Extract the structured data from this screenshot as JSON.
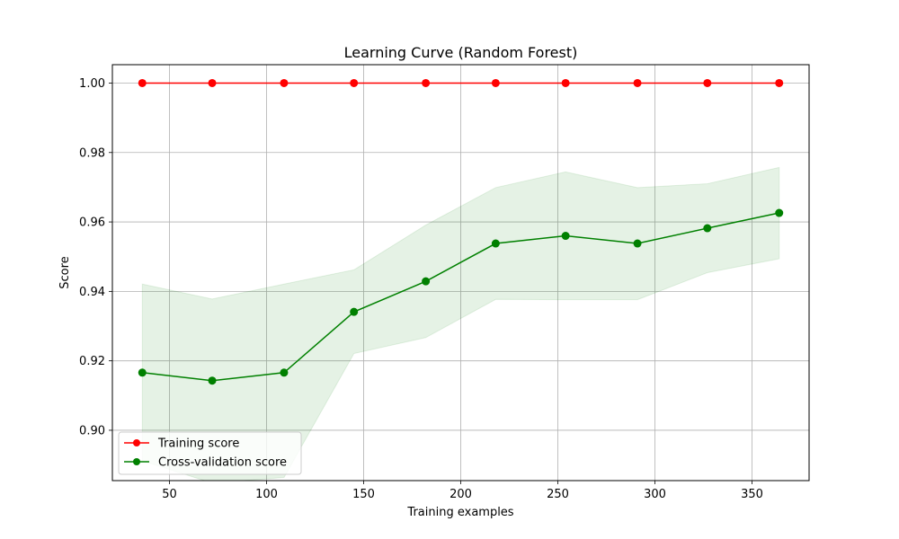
{
  "chart_data": {
    "type": "line",
    "title": "Learning Curve (Random Forest)",
    "xlabel": "Training examples",
    "ylabel": "Score",
    "xlim": [
      20.6,
      379.4
    ],
    "ylim": [
      0.8855,
      1.0053
    ],
    "xticks": [
      50,
      100,
      150,
      200,
      250,
      300,
      350
    ],
    "yticks": [
      0.9,
      0.92,
      0.94,
      0.96,
      0.98,
      1.0
    ],
    "grid": true,
    "legend_position": "lower-left",
    "x": [
      36,
      72,
      109,
      145,
      182,
      218,
      254,
      291,
      327,
      364
    ],
    "series": [
      {
        "name": "Training score",
        "color": "#ff0000",
        "values": [
          1.0,
          1.0,
          1.0,
          1.0,
          1.0,
          1.0,
          1.0,
          1.0,
          1.0,
          1.0
        ],
        "band_lower": [
          1.0,
          1.0,
          1.0,
          1.0,
          1.0,
          1.0,
          1.0,
          1.0,
          1.0,
          1.0
        ],
        "band_upper": [
          1.0,
          1.0,
          1.0,
          1.0,
          1.0,
          1.0,
          1.0,
          1.0,
          1.0,
          1.0
        ]
      },
      {
        "name": "Cross-validation score",
        "color": "#008000",
        "values": [
          0.9166,
          0.9143,
          0.9166,
          0.9341,
          0.9429,
          0.9538,
          0.956,
          0.9538,
          0.9582,
          0.9626
        ],
        "band_lower": [
          0.8912,
          0.8848,
          0.8864,
          0.9221,
          0.9267,
          0.9377,
          0.9376,
          0.9376,
          0.9454,
          0.9494
        ],
        "band_upper": [
          0.9421,
          0.9378,
          0.9421,
          0.9462,
          0.9591,
          0.9699,
          0.9744,
          0.9699,
          0.971,
          0.9757
        ]
      }
    ]
  }
}
